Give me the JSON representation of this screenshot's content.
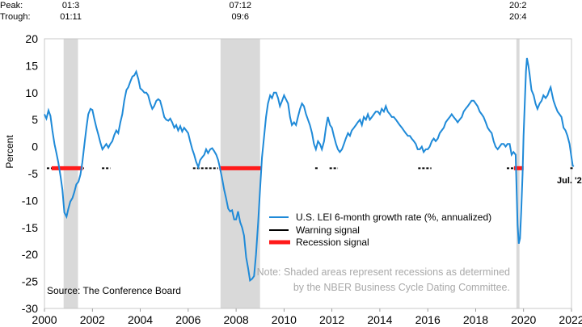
{
  "chart_data": {
    "type": "line",
    "ylabel": "Percent",
    "ylim": [
      -30,
      20
    ],
    "xlim": [
      2000,
      2022
    ],
    "x_ticks": [
      "2000",
      "2002",
      "2004",
      "2006",
      "2008",
      "2010",
      "2012",
      "2014",
      "2016",
      "2018",
      "2020",
      "2022"
    ],
    "y_ticks": [
      "20",
      "15",
      "10",
      "5",
      "0",
      "-5",
      "-10",
      "-15",
      "-20",
      "-25",
      "-30"
    ],
    "header_labels": {
      "peak": "Peak:",
      "trough": "Trough:"
    },
    "recessions": [
      {
        "start": 2000.8,
        "end": 2001.4,
        "peak": "01:3",
        "trough": "01:11"
      },
      {
        "start": 2007.35,
        "end": 2009.0,
        "peak": "07:12",
        "trough": "09:6"
      },
      {
        "start": 2019.7,
        "end": 2019.83,
        "peak": "20:2",
        "trough": "20:4"
      }
    ],
    "series": [
      {
        "name": "U.S. LEI 6-month growth rate (%, annualized)",
        "color": "#1f8ad8",
        "points": [
          [
            2000.0,
            6.0
          ],
          [
            2000.08,
            5.2
          ],
          [
            2000.17,
            6.7
          ],
          [
            2000.25,
            5.7
          ],
          [
            2000.33,
            3.0
          ],
          [
            2000.42,
            0.5
          ],
          [
            2000.5,
            -1.2
          ],
          [
            2000.58,
            -3.0
          ],
          [
            2000.67,
            -5.5
          ],
          [
            2000.75,
            -8.0
          ],
          [
            2000.83,
            -12.2
          ],
          [
            2000.92,
            -13.0
          ],
          [
            2001.0,
            -11.5
          ],
          [
            2001.08,
            -10.2
          ],
          [
            2001.17,
            -9.5
          ],
          [
            2001.25,
            -8.4
          ],
          [
            2001.33,
            -7.0
          ],
          [
            2001.42,
            -6.5
          ],
          [
            2001.5,
            -5.2
          ],
          [
            2001.58,
            -3.0
          ],
          [
            2001.67,
            0.5
          ],
          [
            2001.75,
            3.5
          ],
          [
            2001.83,
            6.0
          ],
          [
            2001.92,
            7.0
          ],
          [
            2002.0,
            6.8
          ],
          [
            2002.08,
            5.2
          ],
          [
            2002.17,
            3.5
          ],
          [
            2002.25,
            2.2
          ],
          [
            2002.33,
            0.8
          ],
          [
            2002.42,
            -0.5
          ],
          [
            2002.5,
            0.0
          ],
          [
            2002.58,
            0.5
          ],
          [
            2002.67,
            -0.2
          ],
          [
            2002.75,
            0.5
          ],
          [
            2002.83,
            1.0
          ],
          [
            2002.92,
            2.2
          ],
          [
            2003.0,
            3.0
          ],
          [
            2003.08,
            2.5
          ],
          [
            2003.17,
            4.5
          ],
          [
            2003.25,
            6.0
          ],
          [
            2003.33,
            8.5
          ],
          [
            2003.42,
            10.5
          ],
          [
            2003.5,
            11.0
          ],
          [
            2003.58,
            12.0
          ],
          [
            2003.67,
            13.0
          ],
          [
            2003.75,
            13.2
          ],
          [
            2003.83,
            13.9
          ],
          [
            2003.92,
            12.5
          ],
          [
            2004.0,
            10.8
          ],
          [
            2004.08,
            10.5
          ],
          [
            2004.17,
            10.0
          ],
          [
            2004.25,
            10.0
          ],
          [
            2004.33,
            9.5
          ],
          [
            2004.42,
            8.0
          ],
          [
            2004.5,
            7.0
          ],
          [
            2004.58,
            7.5
          ],
          [
            2004.67,
            8.5
          ],
          [
            2004.75,
            8.8
          ],
          [
            2004.83,
            8.5
          ],
          [
            2004.92,
            7.0
          ],
          [
            2005.0,
            5.5
          ],
          [
            2005.08,
            5.0
          ],
          [
            2005.17,
            4.8
          ],
          [
            2005.25,
            5.2
          ],
          [
            2005.33,
            4.5
          ],
          [
            2005.42,
            3.5
          ],
          [
            2005.5,
            4.0
          ],
          [
            2005.58,
            3.0
          ],
          [
            2005.67,
            3.8
          ],
          [
            2005.75,
            2.8
          ],
          [
            2005.83,
            3.5
          ],
          [
            2005.92,
            3.0
          ],
          [
            2006.0,
            2.5
          ],
          [
            2006.08,
            1.0
          ],
          [
            2006.17,
            -0.5
          ],
          [
            2006.25,
            -1.5
          ],
          [
            2006.33,
            -2.8
          ],
          [
            2006.42,
            -3.8
          ],
          [
            2006.5,
            -2.5
          ],
          [
            2006.58,
            -2.0
          ],
          [
            2006.67,
            -1.5
          ],
          [
            2006.75,
            -0.5
          ],
          [
            2006.83,
            -1.2
          ],
          [
            2006.92,
            -0.5
          ],
          [
            2007.0,
            -0.3
          ],
          [
            2007.08,
            -0.8
          ],
          [
            2007.17,
            -1.5
          ],
          [
            2007.25,
            -2.5
          ],
          [
            2007.33,
            -4.0
          ],
          [
            2007.42,
            -6.0
          ],
          [
            2007.5,
            -8.0
          ],
          [
            2007.58,
            -9.5
          ],
          [
            2007.67,
            -11.5
          ],
          [
            2007.75,
            -12.0
          ],
          [
            2007.83,
            -11.8
          ],
          [
            2007.92,
            -13.5
          ],
          [
            2008.0,
            -13.5
          ],
          [
            2008.08,
            -12.0
          ],
          [
            2008.17,
            -14.0
          ],
          [
            2008.25,
            -15.0
          ],
          [
            2008.33,
            -16.5
          ],
          [
            2008.42,
            -20.5
          ],
          [
            2008.5,
            -22.5
          ],
          [
            2008.58,
            -24.8
          ],
          [
            2008.67,
            -24.5
          ],
          [
            2008.75,
            -24.0
          ],
          [
            2008.83,
            -20.0
          ],
          [
            2008.92,
            -14.0
          ],
          [
            2009.0,
            -8.0
          ],
          [
            2009.08,
            -2.0
          ],
          [
            2009.17,
            2.0
          ],
          [
            2009.25,
            5.5
          ],
          [
            2009.33,
            8.0
          ],
          [
            2009.42,
            9.5
          ],
          [
            2009.5,
            9.0
          ],
          [
            2009.58,
            10.0
          ],
          [
            2009.67,
            10.0
          ],
          [
            2009.75,
            9.0
          ],
          [
            2009.83,
            7.5
          ],
          [
            2009.92,
            8.5
          ],
          [
            2010.0,
            9.5
          ],
          [
            2010.08,
            8.8
          ],
          [
            2010.17,
            8.0
          ],
          [
            2010.25,
            5.5
          ],
          [
            2010.33,
            4.0
          ],
          [
            2010.42,
            4.5
          ],
          [
            2010.5,
            4.0
          ],
          [
            2010.58,
            5.5
          ],
          [
            2010.67,
            7.0
          ],
          [
            2010.75,
            8.0
          ],
          [
            2010.83,
            7.5
          ],
          [
            2010.92,
            6.0
          ],
          [
            2011.0,
            5.0
          ],
          [
            2011.08,
            4.0
          ],
          [
            2011.17,
            2.5
          ],
          [
            2011.25,
            0.5
          ],
          [
            2011.33,
            -0.5
          ],
          [
            2011.42,
            1.0
          ],
          [
            2011.5,
            0.5
          ],
          [
            2011.58,
            -0.5
          ],
          [
            2011.67,
            1.0
          ],
          [
            2011.75,
            3.5
          ],
          [
            2011.83,
            5.5
          ],
          [
            2011.92,
            4.0
          ],
          [
            2012.0,
            3.5
          ],
          [
            2012.08,
            2.0
          ],
          [
            2012.17,
            0.5
          ],
          [
            2012.25,
            -0.5
          ],
          [
            2012.33,
            -1.0
          ],
          [
            2012.42,
            -0.5
          ],
          [
            2012.5,
            0.5
          ],
          [
            2012.58,
            1.5
          ],
          [
            2012.67,
            2.5
          ],
          [
            2012.75,
            2.0
          ],
          [
            2012.83,
            3.0
          ],
          [
            2012.92,
            3.5
          ],
          [
            2013.0,
            4.0
          ],
          [
            2013.08,
            4.5
          ],
          [
            2013.17,
            5.0
          ],
          [
            2013.25,
            4.0
          ],
          [
            2013.33,
            5.5
          ],
          [
            2013.42,
            5.0
          ],
          [
            2013.5,
            6.0
          ],
          [
            2013.58,
            5.0
          ],
          [
            2013.67,
            5.5
          ],
          [
            2013.75,
            6.0
          ],
          [
            2013.83,
            6.5
          ],
          [
            2013.92,
            6.5
          ],
          [
            2014.0,
            6.0
          ],
          [
            2014.08,
            7.0
          ],
          [
            2014.17,
            6.5
          ],
          [
            2014.25,
            7.5
          ],
          [
            2014.33,
            6.5
          ],
          [
            2014.42,
            6.0
          ],
          [
            2014.5,
            5.5
          ],
          [
            2014.58,
            5.5
          ],
          [
            2014.67,
            5.0
          ],
          [
            2014.75,
            4.5
          ],
          [
            2014.83,
            4.0
          ],
          [
            2014.92,
            3.5
          ],
          [
            2015.0,
            3.0
          ],
          [
            2015.08,
            2.5
          ],
          [
            2015.17,
            2.0
          ],
          [
            2015.25,
            2.0
          ],
          [
            2015.33,
            1.5
          ],
          [
            2015.42,
            1.0
          ],
          [
            2015.5,
            0.5
          ],
          [
            2015.58,
            -0.5
          ],
          [
            2015.67,
            -0.5
          ],
          [
            2015.75,
            0.0
          ],
          [
            2015.83,
            -1.0
          ],
          [
            2015.92,
            -0.5
          ],
          [
            2016.0,
            -0.5
          ],
          [
            2016.08,
            0.0
          ],
          [
            2016.17,
            1.0
          ],
          [
            2016.25,
            1.5
          ],
          [
            2016.33,
            1.0
          ],
          [
            2016.42,
            1.5
          ],
          [
            2016.5,
            2.5
          ],
          [
            2016.58,
            3.0
          ],
          [
            2016.67,
            3.5
          ],
          [
            2016.75,
            4.5
          ],
          [
            2016.83,
            5.0
          ],
          [
            2016.92,
            5.5
          ],
          [
            2017.0,
            6.0
          ],
          [
            2017.08,
            5.5
          ],
          [
            2017.17,
            5.0
          ],
          [
            2017.25,
            4.5
          ],
          [
            2017.33,
            5.0
          ],
          [
            2017.42,
            5.5
          ],
          [
            2017.5,
            6.5
          ],
          [
            2017.58,
            7.0
          ],
          [
            2017.67,
            7.5
          ],
          [
            2017.75,
            8.0
          ],
          [
            2017.83,
            8.5
          ],
          [
            2017.92,
            8.5
          ],
          [
            2018.0,
            8.0
          ],
          [
            2018.08,
            7.5
          ],
          [
            2018.17,
            6.5
          ],
          [
            2018.25,
            6.0
          ],
          [
            2018.33,
            5.5
          ],
          [
            2018.42,
            4.5
          ],
          [
            2018.5,
            3.5
          ],
          [
            2018.58,
            3.0
          ],
          [
            2018.67,
            2.5
          ],
          [
            2018.75,
            1.0
          ],
          [
            2018.83,
            0.0
          ],
          [
            2018.92,
            -0.5
          ],
          [
            2019.0,
            0.0
          ],
          [
            2019.08,
            0.5
          ],
          [
            2019.17,
            0.5
          ],
          [
            2019.25,
            0.0
          ],
          [
            2019.33,
            0.5
          ],
          [
            2019.42,
            0.5
          ],
          [
            2019.5,
            -1.5
          ],
          [
            2019.58,
            -1.0
          ],
          [
            2019.67,
            -1.5
          ],
          [
            2019.75,
            -14.5
          ],
          [
            2019.8,
            -18.0
          ],
          [
            2019.85,
            -17.0
          ],
          [
            2019.9,
            -12.0
          ],
          [
            2019.96,
            -5.0
          ],
          [
            2020.0,
            2.0
          ],
          [
            2020.05,
            8.0
          ],
          [
            2020.1,
            14.0
          ],
          [
            2020.14,
            16.4
          ],
          [
            2020.2,
            15.0
          ],
          [
            2020.25,
            13.5
          ],
          [
            2020.33,
            10.5
          ],
          [
            2020.42,
            9.5
          ],
          [
            2020.5,
            8.0
          ],
          [
            2020.58,
            7.0
          ],
          [
            2020.67,
            8.0
          ],
          [
            2020.75,
            8.5
          ],
          [
            2020.83,
            9.5
          ],
          [
            2020.92,
            9.0
          ],
          [
            2021.0,
            9.5
          ],
          [
            2021.08,
            10.5
          ],
          [
            2021.13,
            11.0
          ],
          [
            2021.2,
            9.5
          ],
          [
            2021.25,
            8.5
          ],
          [
            2021.33,
            7.5
          ],
          [
            2021.42,
            6.5
          ],
          [
            2021.5,
            6.0
          ],
          [
            2021.58,
            5.5
          ],
          [
            2021.67,
            3.5
          ],
          [
            2021.75,
            3.0
          ],
          [
            2021.83,
            2.0
          ],
          [
            2021.92,
            0.5
          ],
          [
            2022.0,
            -2.0
          ],
          [
            2022.05,
            -3.5
          ],
          [
            2022.09,
            -3.7
          ]
        ]
      },
      {
        "name": "Warning signal",
        "color": "#000000",
        "segments": [
          [
            2000.1,
            2001.65
          ],
          [
            2002.4,
            2002.75
          ],
          [
            2006.2,
            2007.25
          ],
          [
            2011.3,
            2011.45
          ],
          [
            2011.9,
            2012.25
          ],
          [
            2015.6,
            2016.15
          ],
          [
            2019.3,
            2019.65
          ],
          [
            2021.95,
            2022.09
          ]
        ]
      },
      {
        "name": "Recession signal",
        "color": "#ff1a1a",
        "segments": [
          [
            2000.3,
            2001.6
          ],
          [
            2007.3,
            2009.05
          ],
          [
            2019.6,
            2020.0
          ]
        ]
      }
    ],
    "annotations": {
      "latest": "Jul. '22",
      "source": "Source: The Conference Board",
      "note_line1": "Note: Shaded areas represent recessions as determined",
      "note_line2": "by the NBER Business Cycle Dating Committee."
    }
  }
}
